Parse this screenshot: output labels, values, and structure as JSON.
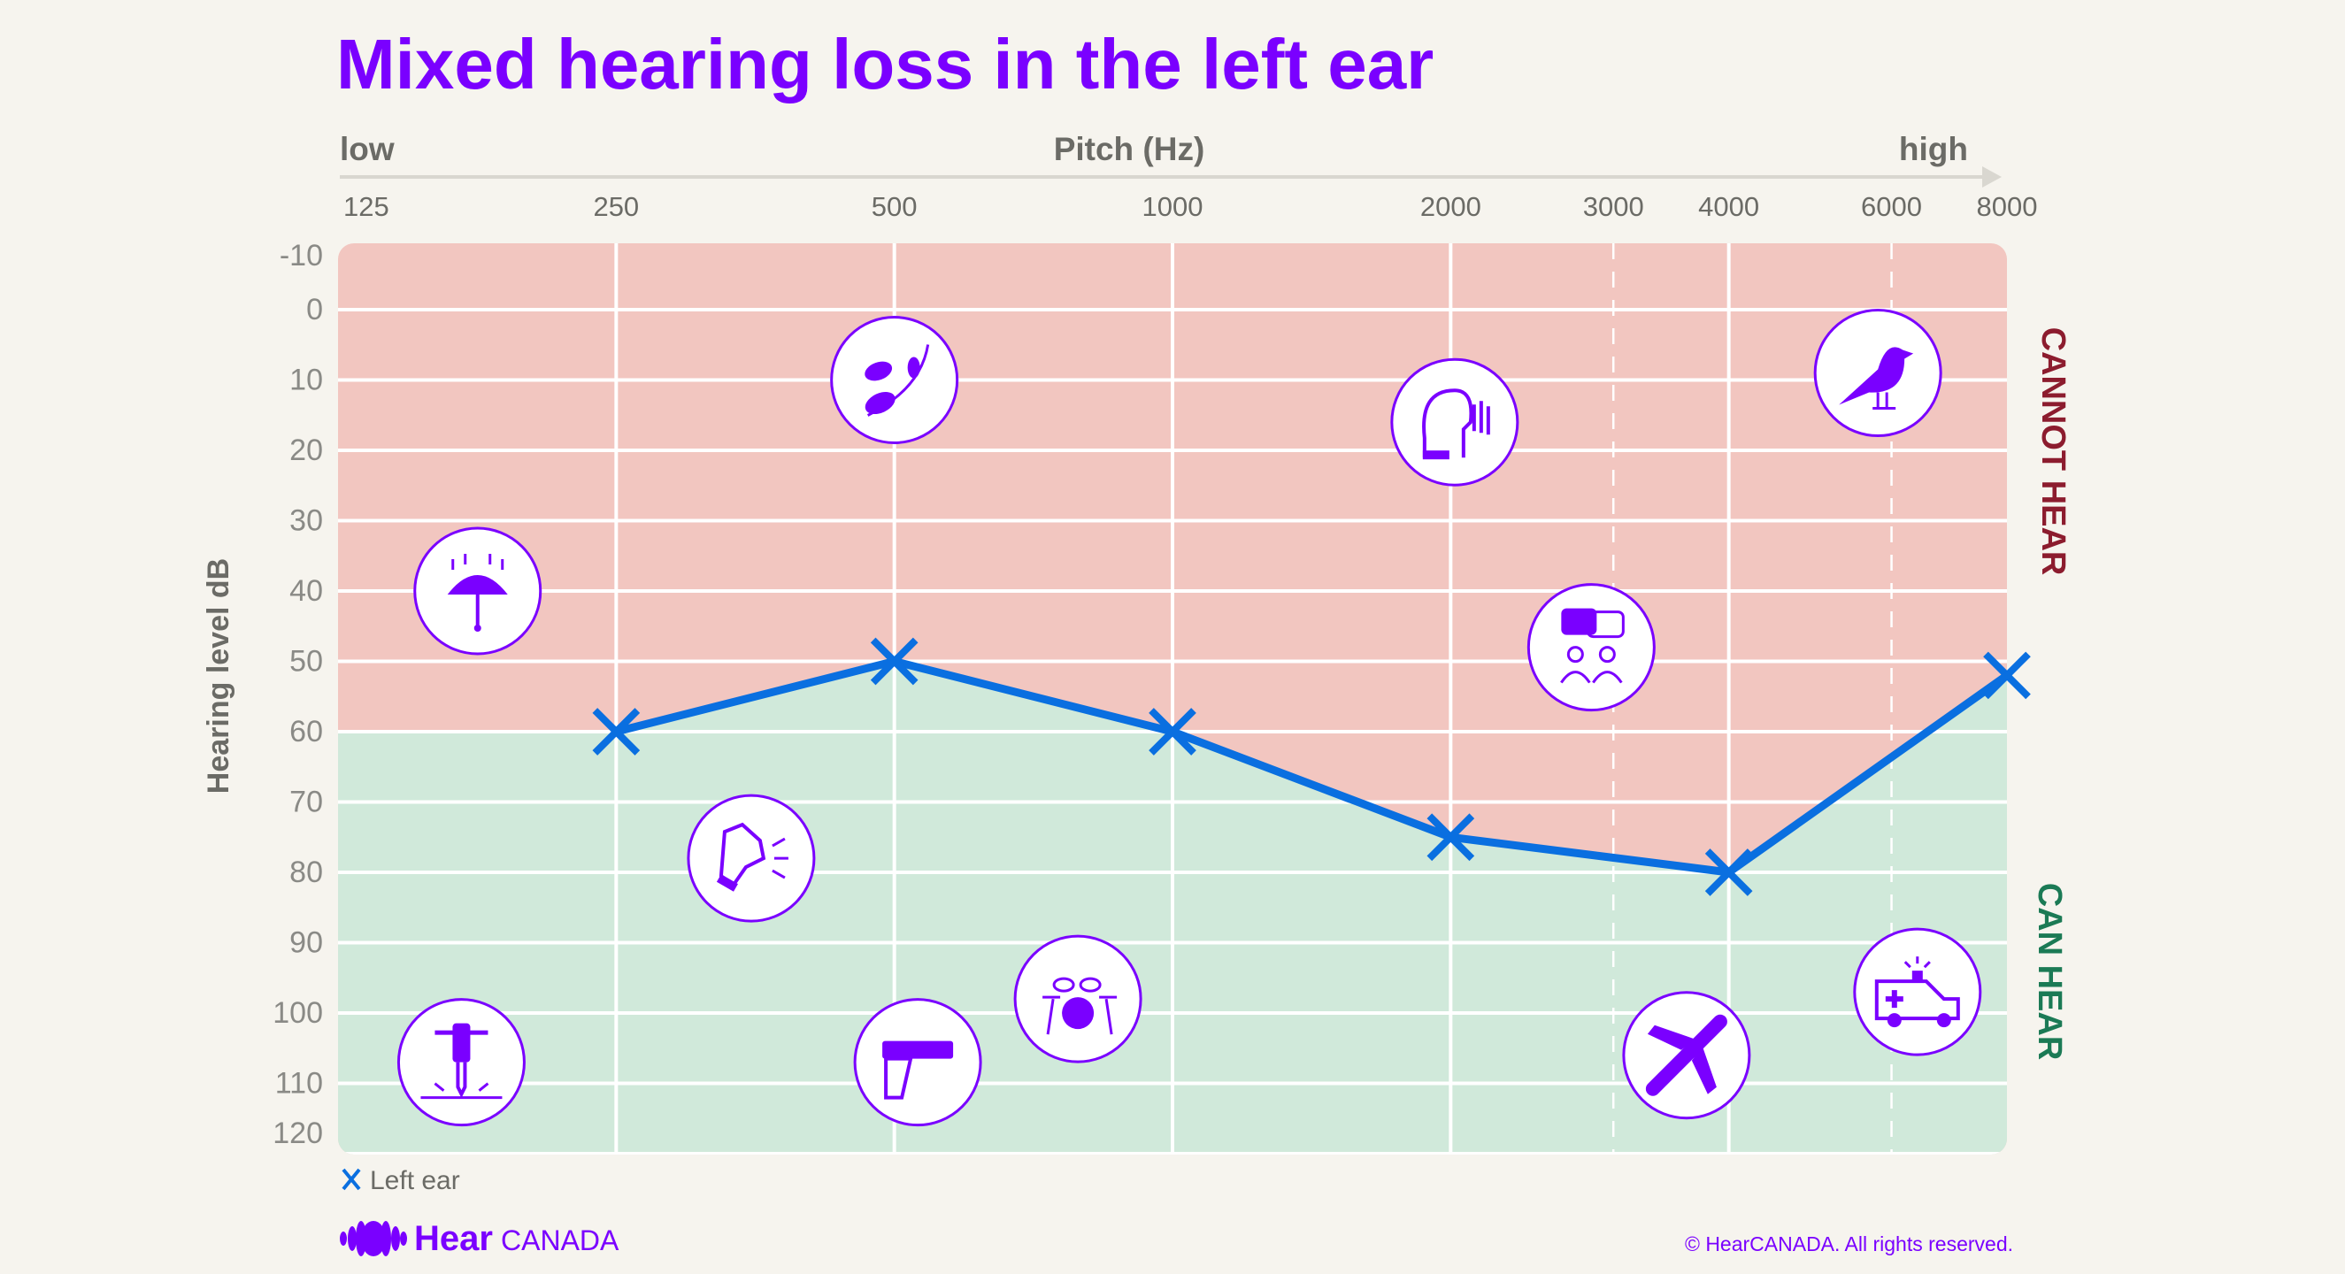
{
  "chart_data": {
    "type": "line",
    "title": "Mixed hearing loss in the left ear",
    "x_axis": {
      "label": "Pitch (Hz)",
      "low_label": "low",
      "high_label": "high",
      "scale": "log2",
      "ticks": [
        125,
        250,
        500,
        1000,
        2000,
        3000,
        4000,
        6000,
        8000
      ],
      "tick_labels": [
        "125",
        "250",
        "500",
        "1000",
        "2000",
        "3000",
        "4000",
        "6000",
        "8000"
      ],
      "dashed_ticks": [
        3000,
        6000
      ],
      "position": "top"
    },
    "y_axis": {
      "label": "Hearing level dB",
      "inverted": true,
      "ylim": [
        -10,
        120
      ],
      "ticks": [
        -10,
        0,
        10,
        20,
        30,
        40,
        50,
        60,
        70,
        80,
        90,
        100,
        110,
        120
      ],
      "tick_labels": [
        "-10",
        "0",
        "10",
        "20",
        "30",
        "40",
        "50",
        "60",
        "70",
        "80",
        "90",
        "100",
        "110",
        "120"
      ]
    },
    "grid": true,
    "series": [
      {
        "name": "Left ear",
        "marker": "x",
        "color": "#0a6fe0",
        "x": [
          250,
          500,
          1000,
          2000,
          4000,
          8000
        ],
        "y": [
          60,
          50,
          60,
          75,
          80,
          52
        ]
      }
    ],
    "regions": {
      "cannot_hear": {
        "label": "CANNOT HEAR",
        "color": "#f2c6c0",
        "text_color": "#8c1c2e"
      },
      "can_hear": {
        "label": "CAN HEAR",
        "color": "#d0e9da",
        "text_color": "#1b7a55"
      },
      "boundary_below_first_point_db": 60
    },
    "legend": {
      "position": "bottom-left",
      "label": "Left ear"
    },
    "sound_icons": [
      {
        "icon": "umbrella-rain-icon",
        "freq": 177,
        "db": 40
      },
      {
        "icon": "leaves-rustling-icon",
        "freq": 500,
        "db": 10
      },
      {
        "icon": "dog-barking-icon",
        "freq": 350,
        "db": 78
      },
      {
        "icon": "jackhammer-icon",
        "freq": 170,
        "db": 107
      },
      {
        "icon": "handgun-icon",
        "freq": 530,
        "db": 107
      },
      {
        "icon": "drum-kit-icon",
        "freq": 790,
        "db": 98
      },
      {
        "icon": "whisper-icon",
        "freq": 2020,
        "db": 16
      },
      {
        "icon": "conversation-icon",
        "freq": 2840,
        "db": 48
      },
      {
        "icon": "bird-singing-icon",
        "freq": 5800,
        "db": 9
      },
      {
        "icon": "airplane-icon",
        "freq": 3600,
        "db": 106
      },
      {
        "icon": "ambulance-siren-icon",
        "freq": 6400,
        "db": 97
      }
    ]
  },
  "colors": {
    "background": "#f6f4ee",
    "title": "#7a00ff",
    "icon": "#7a00ff",
    "axis_text": "#6b6b66",
    "grid": "#ffffff"
  },
  "branding": {
    "logo_word": "Hear",
    "logo_word2": "CANADA",
    "copyright": "© HearCANADA. All rights reserved."
  }
}
